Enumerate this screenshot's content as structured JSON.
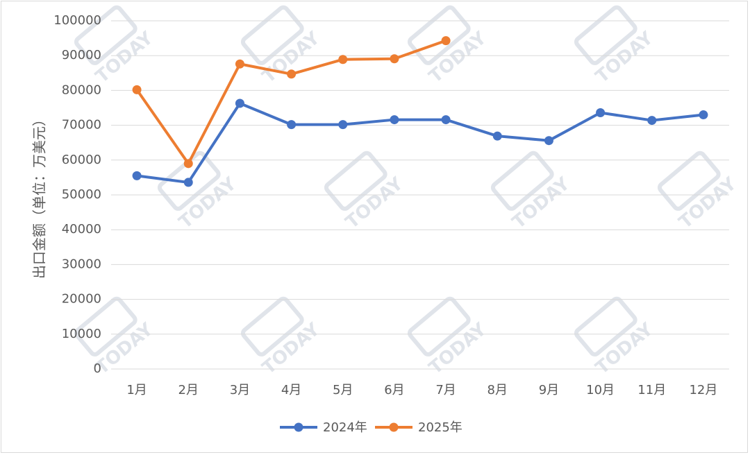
{
  "chart_data": {
    "type": "line",
    "categories": [
      "1月",
      "2月",
      "3月",
      "4月",
      "5月",
      "6月",
      "7月",
      "8月",
      "9月",
      "10月",
      "11月",
      "12月"
    ],
    "series": [
      {
        "name": "2024年",
        "color": "#4472C4",
        "values": [
          55500,
          53600,
          76300,
          70200,
          70200,
          71600,
          71600,
          66900,
          65600,
          73600,
          71400,
          73000
        ]
      },
      {
        "name": "2025年",
        "color": "#ED7D31",
        "values": [
          80200,
          59000,
          87600,
          84700,
          88900,
          89100,
          94300,
          null,
          null,
          null,
          null,
          null
        ]
      }
    ],
    "title": "",
    "xlabel": "",
    "ylabel": "出口金额（单位：万美元）",
    "ylim": [
      0,
      100000
    ],
    "yticks": [
      "0",
      "10000",
      "20000",
      "30000",
      "40000",
      "50000",
      "60000",
      "70000",
      "80000",
      "90000",
      "100000"
    ],
    "grid": true,
    "legend_position": "bottom",
    "watermark_text": "TODAY"
  }
}
